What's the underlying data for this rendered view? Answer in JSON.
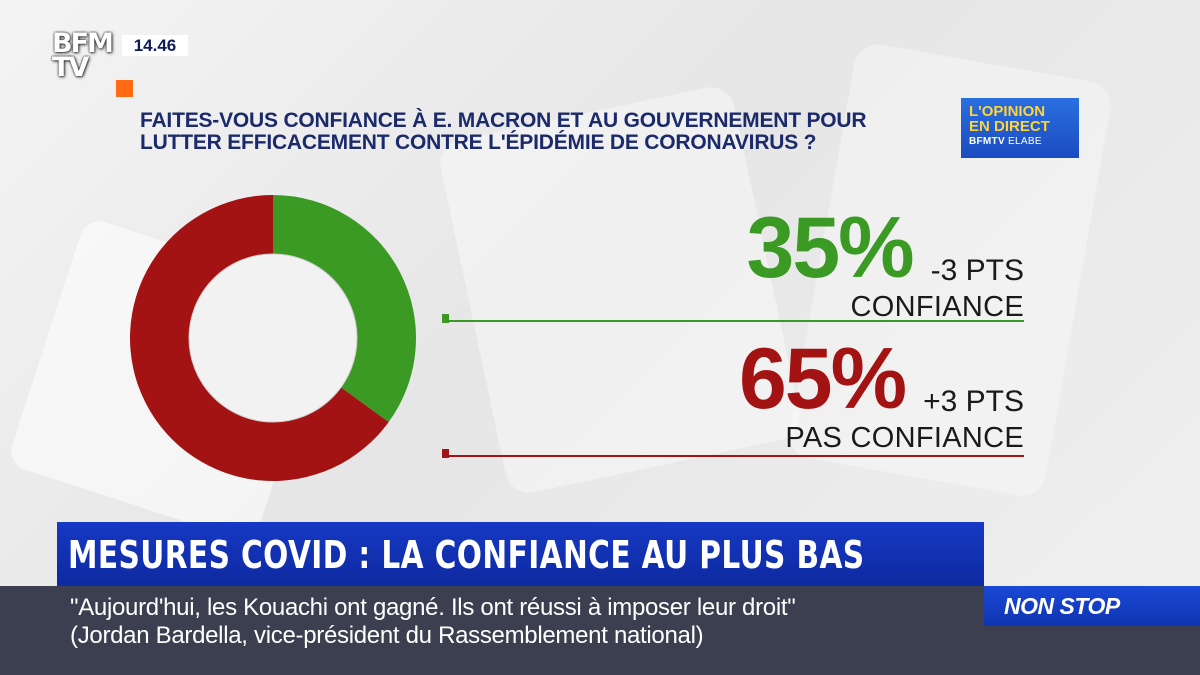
{
  "channel": {
    "logo_text": "BFM\nTV",
    "clock": "14.46"
  },
  "question": {
    "line1": "FAITES-VOUS CONFIANCE À E. MACRON ET AU GOUVERNEMENT  POUR",
    "line2": "LUTTER EFFICACEMENT CONTRE L'ÉPIDÉMIE DE CORONAVIRUS ?"
  },
  "opinion_badge": {
    "line1": "L'OPINION",
    "line2": "EN DIRECT",
    "brand": "BFMTV",
    "partner": "ELABE"
  },
  "chart_data": {
    "type": "pie",
    "variant": "donut",
    "categories": [
      "CONFIANCE",
      "PAS CONFIANCE"
    ],
    "values": [
      35,
      65
    ],
    "value_labels": [
      "35%",
      "65%"
    ],
    "changes": [
      "-3 PTS",
      "+3 PTS"
    ],
    "colors": [
      "#3a9a24",
      "#a31313"
    ]
  },
  "headline": "MESURES COVID : LA CONFIANCE AU PLUS BAS",
  "ticker": {
    "quote": "\"Aujourd'hui, les Kouachi ont gagné. Ils ont réussi à imposer leur droit\"",
    "attribution": "(Jordan Bardella, vice-président du Rassemblement national)"
  },
  "non_stop_label": "NON STOP"
}
